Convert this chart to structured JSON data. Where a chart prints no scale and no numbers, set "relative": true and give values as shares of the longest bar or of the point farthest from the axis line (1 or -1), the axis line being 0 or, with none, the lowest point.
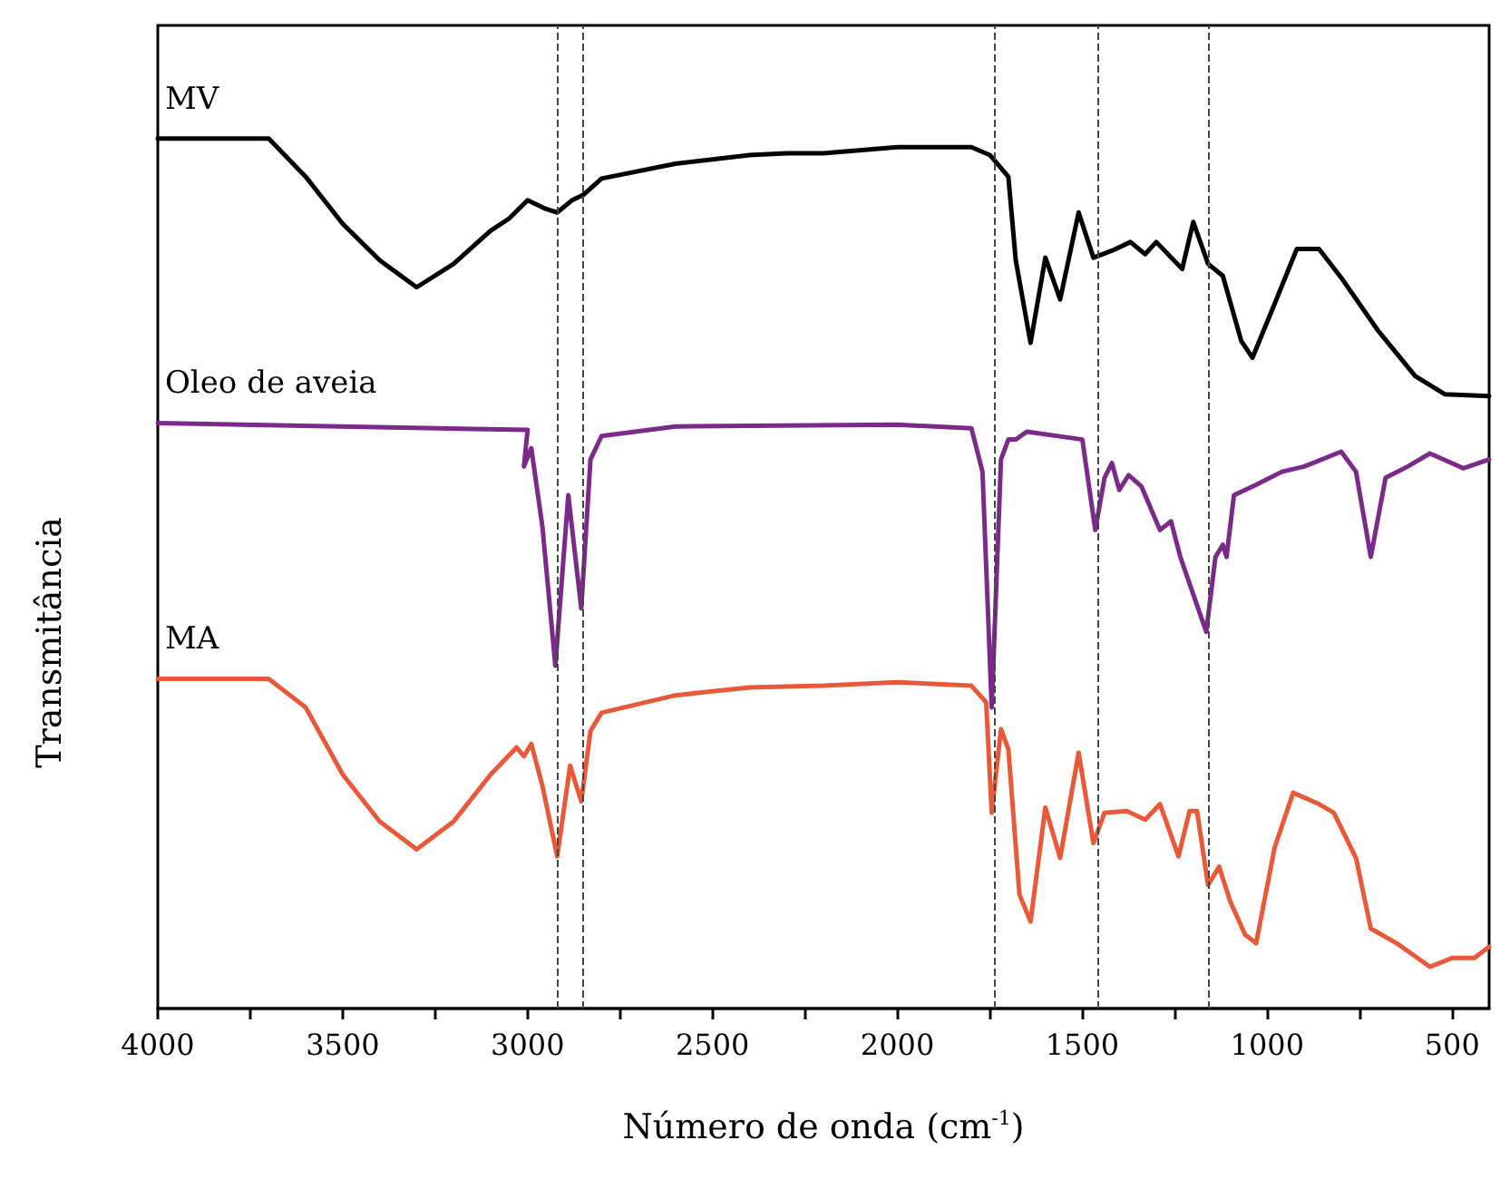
{
  "chart_data": {
    "type": "line",
    "relative": true,
    "xlabel": "Número de onda (cm$^{-1}$)",
    "ylabel": "Transmitância",
    "xlim": [
      4000,
      400
    ],
    "xticks": [
      4000,
      {
        "value": 3750,
        "label": null
      },
      3500,
      {
        "value": 3250,
        "label": null
      },
      3000,
      {
        "value": 2750,
        "label": null
      },
      2500,
      {
        "value": 2250,
        "label": null
      },
      2000,
      {
        "value": 1750,
        "label": null
      },
      1500,
      {
        "value": 1250,
        "label": null
      },
      1000,
      {
        "value": 750,
        "label": null
      },
      500
    ],
    "grid": false,
    "legend": false,
    "marker": "none",
    "line_style": "solid",
    "ref_lines": [
      {
        "axis": "x",
        "value": 2920
      },
      {
        "axis": "x",
        "value": 2850
      },
      {
        "axis": "x",
        "value": 1740
      },
      {
        "axis": "x",
        "value": 1460
      },
      {
        "axis": "x",
        "value": 1160
      }
    ],
    "series": [
      {
        "name": "MV",
        "color": "#000000",
        "x": [
          4000,
          3700,
          3600,
          3500,
          3400,
          3300,
          3200,
          3100,
          3050,
          3000,
          2950,
          2920,
          2880,
          2850,
          2800,
          2600,
          2400,
          2300,
          2200,
          2000,
          1800,
          1750,
          1700,
          1680,
          1640,
          1600,
          1560,
          1510,
          1470,
          1420,
          1370,
          1330,
          1300,
          1230,
          1200,
          1160,
          1120,
          1070,
          1040,
          980,
          920,
          860,
          800,
          700,
          600,
          520,
          400
        ],
        "values": [
          1.0,
          1.0,
          0.956,
          0.902,
          0.86,
          0.829,
          0.856,
          0.894,
          0.908,
          0.929,
          0.919,
          0.915,
          0.929,
          0.935,
          0.954,
          0.971,
          0.981,
          0.983,
          0.983,
          0.99,
          0.99,
          0.981,
          0.956,
          0.86,
          0.765,
          0.863,
          0.815,
          0.915,
          0.863,
          0.871,
          0.881,
          0.867,
          0.881,
          0.85,
          0.904,
          0.856,
          0.842,
          0.767,
          0.748,
          0.81,
          0.873,
          0.873,
          0.84,
          0.779,
          0.727,
          0.706,
          0.704
        ]
      },
      {
        "name": "Oleo de aveia",
        "color": "#7b2a8a",
        "x": [
          4000,
          3000,
          3010,
          2990,
          2960,
          2925,
          2890,
          2855,
          2830,
          2800,
          2600,
          2000,
          1800,
          1770,
          1745,
          1720,
          1700,
          1680,
          1650,
          1500,
          1465,
          1440,
          1420,
          1400,
          1375,
          1340,
          1290,
          1260,
          1235,
          1165,
          1140,
          1120,
          1110,
          1090,
          1030,
          960,
          900,
          800,
          760,
          720,
          680,
          620,
          560,
          470,
          400
        ],
        "values": [
          0.673,
          0.665,
          0.623,
          0.644,
          0.554,
          0.394,
          0.59,
          0.46,
          0.631,
          0.658,
          0.669,
          0.671,
          0.667,
          0.617,
          0.346,
          0.631,
          0.654,
          0.654,
          0.663,
          0.654,
          0.55,
          0.61,
          0.627,
          0.596,
          0.613,
          0.6,
          0.55,
          0.56,
          0.519,
          0.433,
          0.519,
          0.533,
          0.519,
          0.59,
          0.602,
          0.617,
          0.623,
          0.64,
          0.617,
          0.519,
          0.61,
          0.623,
          0.638,
          0.621,
          0.631
        ]
      },
      {
        "name": "MA",
        "color": "#e8593a",
        "x": [
          4000,
          3700,
          3600,
          3500,
          3400,
          3300,
          3200,
          3100,
          3030,
          3010,
          2990,
          2960,
          2920,
          2885,
          2855,
          2830,
          2800,
          2600,
          2400,
          2200,
          2000,
          1800,
          1760,
          1745,
          1720,
          1700,
          1670,
          1640,
          1600,
          1560,
          1510,
          1470,
          1440,
          1380,
          1330,
          1290,
          1240,
          1210,
          1190,
          1160,
          1130,
          1100,
          1060,
          1030,
          980,
          930,
          860,
          820,
          760,
          720,
          650,
          560,
          500,
          440,
          400
        ],
        "values": [
          0.379,
          0.379,
          0.346,
          0.269,
          0.215,
          0.183,
          0.215,
          0.269,
          0.3,
          0.29,
          0.304,
          0.256,
          0.175,
          0.279,
          0.238,
          0.319,
          0.34,
          0.36,
          0.369,
          0.371,
          0.375,
          0.371,
          0.352,
          0.225,
          0.321,
          0.298,
          0.131,
          0.1,
          0.231,
          0.173,
          0.294,
          0.19,
          0.225,
          0.227,
          0.217,
          0.235,
          0.175,
          0.227,
          0.227,
          0.142,
          0.163,
          0.123,
          0.085,
          0.075,
          0.185,
          0.248,
          0.235,
          0.225,
          0.173,
          0.092,
          0.075,
          0.048,
          0.058,
          0.058,
          0.071
        ]
      }
    ]
  }
}
